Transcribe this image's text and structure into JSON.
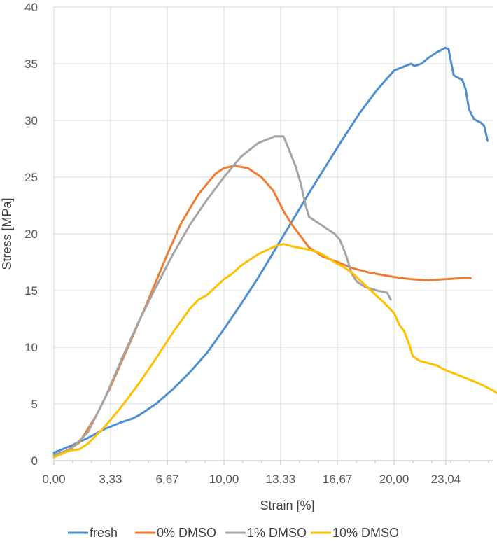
{
  "chart_data": {
    "type": "line",
    "xlabel": "Strain [%]",
    "ylabel": "Stress [MPa]",
    "xlim": [
      0,
      25.8
    ],
    "ylim": [
      0,
      40
    ],
    "x_ticks": [
      {
        "value": 0,
        "label": "0,00"
      },
      {
        "value": 3.33,
        "label": "3,33"
      },
      {
        "value": 6.67,
        "label": "6,67"
      },
      {
        "value": 10.0,
        "label": "10,00"
      },
      {
        "value": 13.33,
        "label": "13,33"
      },
      {
        "value": 16.67,
        "label": "16,67"
      },
      {
        "value": 20.0,
        "label": "20,00"
      },
      {
        "value": 23.04,
        "label": "23,04"
      }
    ],
    "y_ticks": [
      {
        "value": 0,
        "label": "0"
      },
      {
        "value": 5,
        "label": "5"
      },
      {
        "value": 10,
        "label": "10"
      },
      {
        "value": 15,
        "label": "15"
      },
      {
        "value": 20,
        "label": "20"
      },
      {
        "value": 25,
        "label": "25"
      },
      {
        "value": 30,
        "label": "30"
      },
      {
        "value": 35,
        "label": "35"
      },
      {
        "value": 40,
        "label": "40"
      }
    ],
    "grid": true,
    "legend_position": "bottom",
    "series": [
      {
        "name": "fresh",
        "color": "#4E8FD0",
        "points": [
          [
            0,
            0.7
          ],
          [
            1.0,
            1.3
          ],
          [
            2.0,
            2.0
          ],
          [
            3.0,
            2.8
          ],
          [
            4.0,
            3.4
          ],
          [
            4.6,
            3.7
          ],
          [
            5.0,
            4.0
          ],
          [
            6.0,
            5.0
          ],
          [
            7.0,
            6.3
          ],
          [
            8.0,
            7.8
          ],
          [
            9.0,
            9.5
          ],
          [
            10.0,
            11.6
          ],
          [
            11.0,
            13.8
          ],
          [
            12.0,
            16.1
          ],
          [
            13.0,
            18.6
          ],
          [
            14.0,
            21.1
          ],
          [
            15.0,
            23.6
          ],
          [
            16.0,
            26.0
          ],
          [
            17.0,
            28.4
          ],
          [
            18.0,
            30.7
          ],
          [
            19.0,
            32.7
          ],
          [
            20.0,
            34.4
          ],
          [
            21.0,
            35.0
          ],
          [
            21.2,
            34.8
          ],
          [
            21.6,
            35.0
          ],
          [
            22.0,
            35.5
          ],
          [
            22.5,
            36.0
          ],
          [
            23.0,
            36.4
          ],
          [
            23.2,
            36.3
          ],
          [
            23.5,
            34.0
          ],
          [
            23.7,
            33.8
          ],
          [
            24.0,
            33.6
          ],
          [
            24.2,
            32.8
          ],
          [
            24.4,
            31.0
          ],
          [
            24.7,
            30.1
          ],
          [
            25.1,
            29.8
          ],
          [
            25.3,
            29.5
          ],
          [
            25.5,
            28.2
          ]
        ]
      },
      {
        "name": "0% DMSO",
        "color": "#ED7D31",
        "points": [
          [
            0,
            0.5
          ],
          [
            0.8,
            0.9
          ],
          [
            1.5,
            1.6
          ],
          [
            2.5,
            4.0
          ],
          [
            3.33,
            6.5
          ],
          [
            4.5,
            10.5
          ],
          [
            5.5,
            14.0
          ],
          [
            6.67,
            18.2
          ],
          [
            7.5,
            21.0
          ],
          [
            8.5,
            23.5
          ],
          [
            9.5,
            25.3
          ],
          [
            10.0,
            25.8
          ],
          [
            10.6,
            26.0
          ],
          [
            11.4,
            25.8
          ],
          [
            12.2,
            25.0
          ],
          [
            12.9,
            23.8
          ],
          [
            13.5,
            22.0
          ],
          [
            14.0,
            20.8
          ],
          [
            14.5,
            19.8
          ],
          [
            15.0,
            18.8
          ],
          [
            15.8,
            18.0
          ],
          [
            16.7,
            17.5
          ],
          [
            17.5,
            17.0
          ],
          [
            18.5,
            16.6
          ],
          [
            20.0,
            16.2
          ],
          [
            21.0,
            16.0
          ],
          [
            22.0,
            15.9
          ],
          [
            23.0,
            16.0
          ],
          [
            24.0,
            16.1
          ],
          [
            24.5,
            16.1
          ]
        ]
      },
      {
        "name": "1% DMSO",
        "color": "#A5A5A5",
        "points": [
          [
            0,
            0.5
          ],
          [
            1.0,
            1.0
          ],
          [
            2.0,
            2.5
          ],
          [
            3.0,
            5.5
          ],
          [
            4.0,
            9.0
          ],
          [
            5.0,
            12.3
          ],
          [
            6.0,
            15.3
          ],
          [
            7.0,
            18.2
          ],
          [
            8.0,
            20.8
          ],
          [
            9.0,
            23.0
          ],
          [
            10.0,
            25.0
          ],
          [
            11.0,
            26.8
          ],
          [
            12.0,
            28.0
          ],
          [
            13.0,
            28.6
          ],
          [
            13.5,
            28.6
          ],
          [
            13.8,
            27.5
          ],
          [
            14.2,
            26.0
          ],
          [
            14.5,
            24.5
          ],
          [
            14.8,
            22.5
          ],
          [
            15.0,
            21.5
          ],
          [
            15.5,
            21.0
          ],
          [
            16.0,
            20.5
          ],
          [
            16.5,
            20.0
          ],
          [
            16.8,
            19.5
          ],
          [
            17.0,
            18.8
          ],
          [
            17.2,
            18.0
          ],
          [
            17.5,
            16.5
          ],
          [
            17.8,
            15.8
          ],
          [
            18.3,
            15.3
          ],
          [
            19.0,
            15.0
          ],
          [
            19.6,
            14.8
          ],
          [
            19.8,
            14.2
          ]
        ]
      },
      {
        "name": "10% DMSO",
        "color": "#FFC000",
        "points": [
          [
            0,
            0.3
          ],
          [
            0.6,
            0.7
          ],
          [
            1.0,
            0.9
          ],
          [
            1.5,
            1.0
          ],
          [
            2.0,
            1.5
          ],
          [
            3.0,
            3.0
          ],
          [
            4.0,
            4.8
          ],
          [
            5.0,
            6.8
          ],
          [
            6.0,
            9.0
          ],
          [
            7.0,
            11.3
          ],
          [
            8.0,
            13.4
          ],
          [
            8.5,
            14.2
          ],
          [
            9.0,
            14.6
          ],
          [
            9.5,
            15.3
          ],
          [
            10.0,
            16.0
          ],
          [
            10.5,
            16.5
          ],
          [
            11.0,
            17.2
          ],
          [
            12.0,
            18.2
          ],
          [
            13.0,
            18.9
          ],
          [
            13.5,
            19.1
          ],
          [
            14.0,
            18.9
          ],
          [
            15.0,
            18.6
          ],
          [
            15.5,
            18.4
          ],
          [
            16.0,
            18.0
          ],
          [
            16.5,
            17.5
          ],
          [
            17.0,
            17.1
          ],
          [
            17.5,
            16.6
          ],
          [
            18.0,
            15.9
          ],
          [
            18.5,
            15.2
          ],
          [
            19.0,
            14.5
          ],
          [
            19.5,
            13.8
          ],
          [
            20.0,
            13.0
          ],
          [
            20.3,
            12.0
          ],
          [
            20.6,
            11.4
          ],
          [
            20.9,
            10.2
          ],
          [
            21.1,
            9.2
          ],
          [
            21.5,
            8.8
          ],
          [
            22.0,
            8.6
          ],
          [
            22.5,
            8.4
          ],
          [
            23.0,
            8.0
          ],
          [
            24.0,
            7.4
          ],
          [
            25.0,
            6.8
          ],
          [
            25.8,
            6.2
          ],
          [
            26.3,
            5.7
          ]
        ]
      }
    ]
  }
}
